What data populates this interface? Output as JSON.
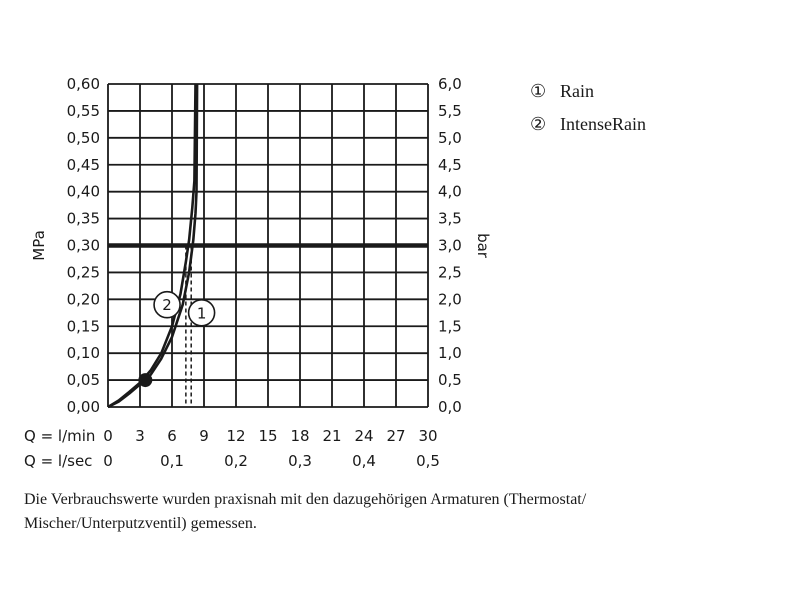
{
  "chart_data": {
    "type": "line",
    "title": "",
    "x_axis": {
      "range": [
        0,
        30
      ],
      "label_primary": "Q = l/min",
      "ticks_primary": [
        "0",
        "3",
        "6",
        "9",
        "12",
        "15",
        "18",
        "21",
        "24",
        "27",
        "30"
      ],
      "label_secondary": "Q = l/sec",
      "ticks_secondary": [
        {
          "x": 0,
          "label": "0"
        },
        {
          "x": 6,
          "label": "0,1"
        },
        {
          "x": 12,
          "label": "0,2"
        },
        {
          "x": 18,
          "label": "0,3"
        },
        {
          "x": 24,
          "label": "0,4"
        },
        {
          "x": 30,
          "label": "0,5"
        }
      ]
    },
    "y_axis_left": {
      "label": "MPa",
      "range": [
        0,
        0.6
      ],
      "ticks": [
        "0,00",
        "0,05",
        "0,10",
        "0,15",
        "0,20",
        "0,25",
        "0,30",
        "0,35",
        "0,40",
        "0,45",
        "0,50",
        "0,55",
        "0,60"
      ]
    },
    "y_axis_right": {
      "label": "bar",
      "range": [
        0,
        6
      ],
      "ticks": [
        "0,0",
        "0,5",
        "1,0",
        "1,5",
        "2,0",
        "2,5",
        "3,0",
        "3,5",
        "4,0",
        "4,5",
        "5,0",
        "5,5",
        "6,0"
      ]
    },
    "grid": true,
    "reference_line": {
      "y": 0.3
    },
    "min_pressure_point": {
      "x": 3.5,
      "y": 0.05
    },
    "series": [
      {
        "name": "Rain",
        "marker": "1",
        "points": [
          [
            0,
            0
          ],
          [
            1,
            0.01
          ],
          [
            2,
            0.025
          ],
          [
            3,
            0.042
          ],
          [
            4,
            0.06
          ],
          [
            5,
            0.09
          ],
          [
            6,
            0.13
          ],
          [
            7,
            0.19
          ],
          [
            7.6,
            0.25
          ],
          [
            8,
            0.31
          ],
          [
            8.2,
            0.36
          ],
          [
            8.3,
            0.4
          ],
          [
            8.35,
            0.6
          ]
        ],
        "operating_flow": 7.8
      },
      {
        "name": "IntenseRain",
        "marker": "2",
        "points": [
          [
            0,
            0
          ],
          [
            1,
            0.012
          ],
          [
            2,
            0.028
          ],
          [
            3,
            0.045
          ],
          [
            4,
            0.068
          ],
          [
            5,
            0.1
          ],
          [
            6,
            0.15
          ],
          [
            6.8,
            0.21
          ],
          [
            7.3,
            0.27
          ],
          [
            7.6,
            0.31
          ],
          [
            7.9,
            0.37
          ],
          [
            8.1,
            0.42
          ],
          [
            8.2,
            0.6
          ]
        ],
        "operating_flow": 7.3
      }
    ],
    "legend": {
      "position": "top-right",
      "items": [
        {
          "marker": "①",
          "label": "Rain"
        },
        {
          "marker": "②",
          "label": "IntenseRain"
        }
      ]
    }
  },
  "caption": {
    "line1": "Die Verbrauchswerte wurden praxisnah mit den dazugehörigen Armaturen (Thermostat/",
    "line2": "Mischer/Unterputzventil) gemessen."
  },
  "colors": {
    "ink": "#1a1a1a",
    "grid": "#1a1a1a"
  }
}
